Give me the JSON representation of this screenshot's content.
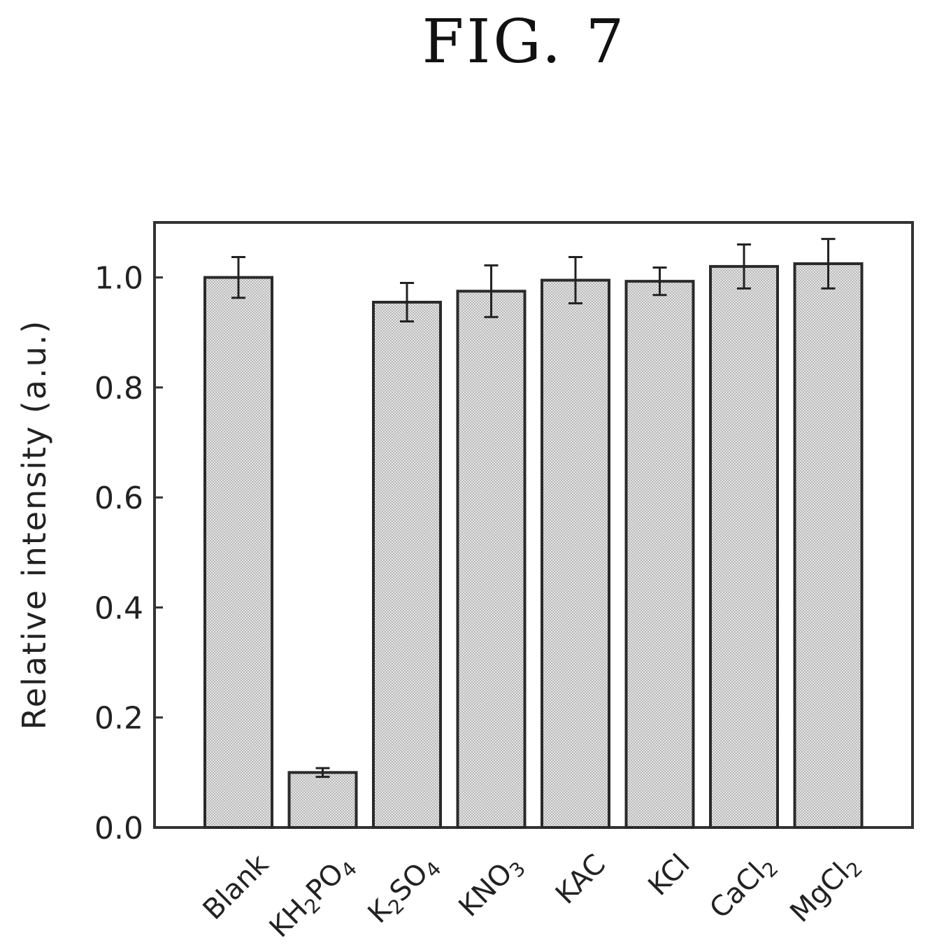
{
  "figure_title": "FIG. 7",
  "chart_data": {
    "type": "bar",
    "title": "",
    "xlabel": "",
    "ylabel": "Relative intensity (a.u.)",
    "ylim": [
      0,
      1.1
    ],
    "yticks": [
      "0.0",
      "0.2",
      "0.4",
      "0.6",
      "0.8",
      "1.0"
    ],
    "categories": [
      {
        "main": "Blank",
        "sub": ""
      },
      {
        "main": "KH",
        "sub": "2",
        "main2": "PO",
        "sub2": "4"
      },
      {
        "main": "K",
        "sub": "2",
        "main2": "SO",
        "sub2": "4"
      },
      {
        "main": "KNO",
        "sub": "3"
      },
      {
        "main": "KAC",
        "sub": ""
      },
      {
        "main": "KCl",
        "sub": ""
      },
      {
        "main": "CaCl",
        "sub": "2"
      },
      {
        "main": "MgCl",
        "sub": "2"
      }
    ],
    "values": [
      1.0,
      0.1,
      0.955,
      0.975,
      0.995,
      0.993,
      1.02,
      1.025
    ],
    "errors": [
      0.037,
      0.008,
      0.035,
      0.047,
      0.042,
      0.025,
      0.04,
      0.045
    ],
    "grid": false,
    "legend": "none",
    "bar_color": "#cfcfcf"
  }
}
